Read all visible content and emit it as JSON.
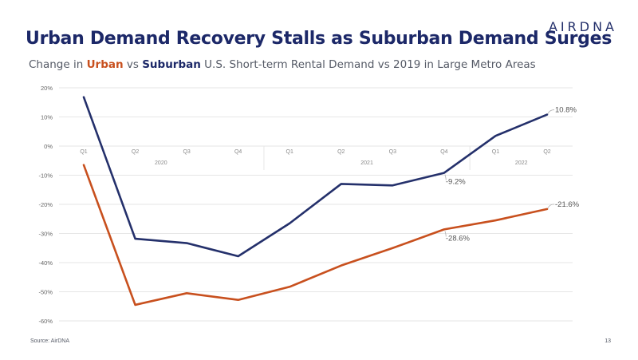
{
  "logo": "AIRDNA",
  "title": "Urban Demand Recovery Stalls as Suburban Demand Surges",
  "subtitle": {
    "prefix": "Change in ",
    "urban": "Urban",
    "vs": " vs ",
    "suburban": "Suburban",
    "suffix": " U.S. Short-term Rental Demand vs 2019 in Large Metro Areas"
  },
  "source": "Source: AirDNA",
  "page_number": "13",
  "colors": {
    "urban": "#c8501e",
    "suburban": "#24306b",
    "grid": "#e6e6e6",
    "axis_text": "#666666"
  },
  "chart_data": {
    "type": "line",
    "x": [
      "Q1",
      "Q2",
      "Q3",
      "Q4",
      "Q1",
      "Q2",
      "Q3",
      "Q4",
      "Q1",
      "Q2"
    ],
    "year_groups": [
      {
        "label": "2020",
        "span": [
          0,
          3
        ]
      },
      {
        "label": "2021",
        "span": [
          4,
          7
        ]
      },
      {
        "label": "2022",
        "span": [
          8,
          9
        ]
      }
    ],
    "ylim": [
      -60,
      20
    ],
    "yticks": [
      20,
      10,
      0,
      -10,
      -20,
      -30,
      -40,
      -50,
      -60
    ],
    "ytick_labels": [
      "20%",
      "10%",
      "0%",
      "-10%",
      "-20%",
      "-30%",
      "-40%",
      "-50%",
      "-60%"
    ],
    "grid": true,
    "series": [
      {
        "name": "Suburban",
        "values": [
          16.8,
          -31.8,
          -33.3,
          -37.8,
          -26.5,
          -13.0,
          -13.5,
          -9.2,
          3.5,
          10.8
        ],
        "color": "#24306b",
        "annotations": [
          {
            "index": 7,
            "text": "-9.2%"
          },
          {
            "index": 9,
            "text": "10.8%"
          }
        ]
      },
      {
        "name": "Urban",
        "values": [
          -6.5,
          -54.5,
          -50.5,
          -52.8,
          -48.3,
          -41.0,
          -35.0,
          -28.6,
          -25.5,
          -21.6
        ],
        "color": "#c8501e",
        "annotations": [
          {
            "index": 7,
            "text": "-28.6%"
          },
          {
            "index": 9,
            "text": "-21.6%"
          }
        ]
      }
    ]
  }
}
